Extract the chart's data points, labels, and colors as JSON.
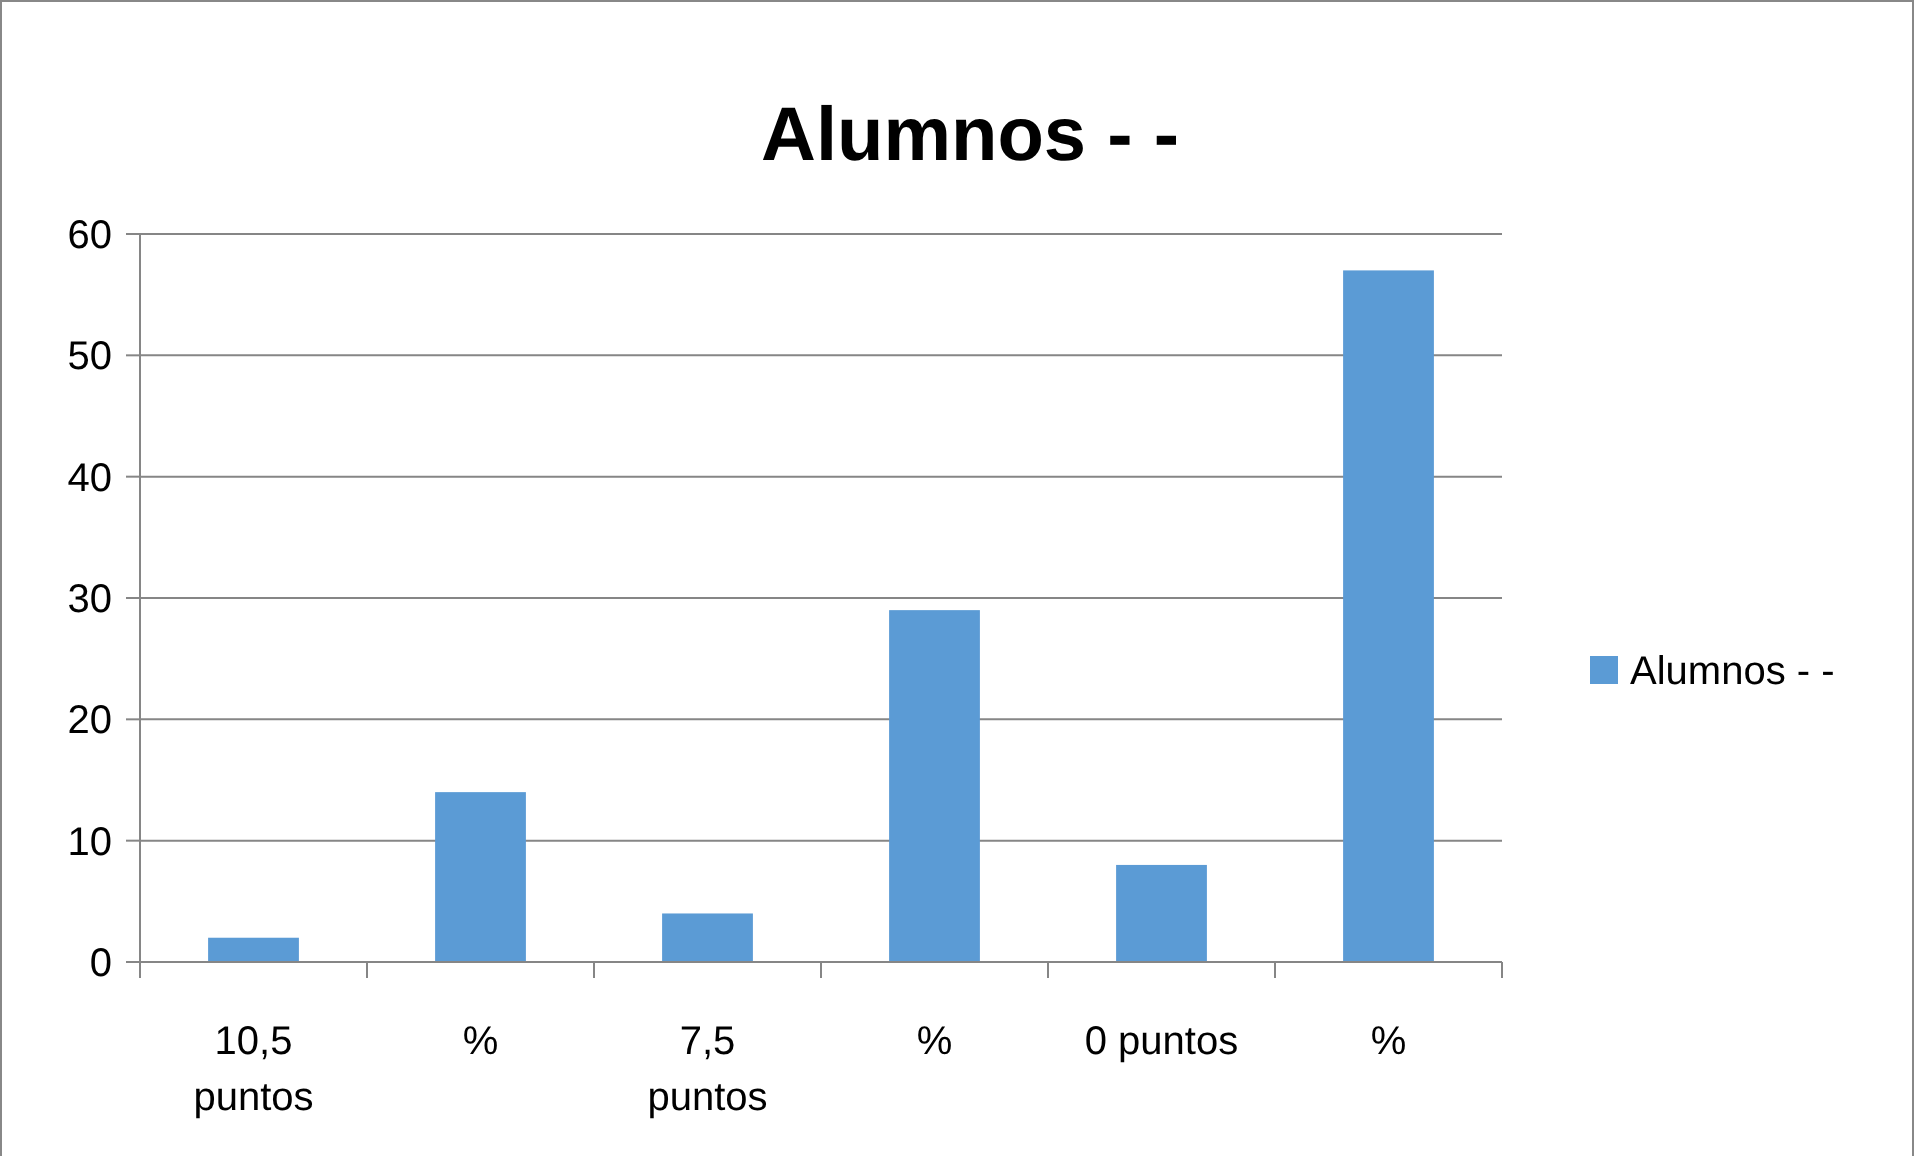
{
  "chart_data": {
    "type": "bar",
    "title": "Alumnos - -",
    "categories": [
      "10,5 puntos",
      "%",
      "7,5 puntos",
      "%",
      "0 puntos",
      "%"
    ],
    "series": [
      {
        "name": "Alumnos - -",
        "color": "#5b9bd5",
        "values": [
          2,
          14,
          4,
          29,
          8,
          57
        ]
      }
    ],
    "ylim": [
      0,
      60
    ],
    "yticks": [
      0,
      10,
      20,
      30,
      40,
      50,
      60
    ],
    "grid": "y",
    "legend": "right"
  }
}
